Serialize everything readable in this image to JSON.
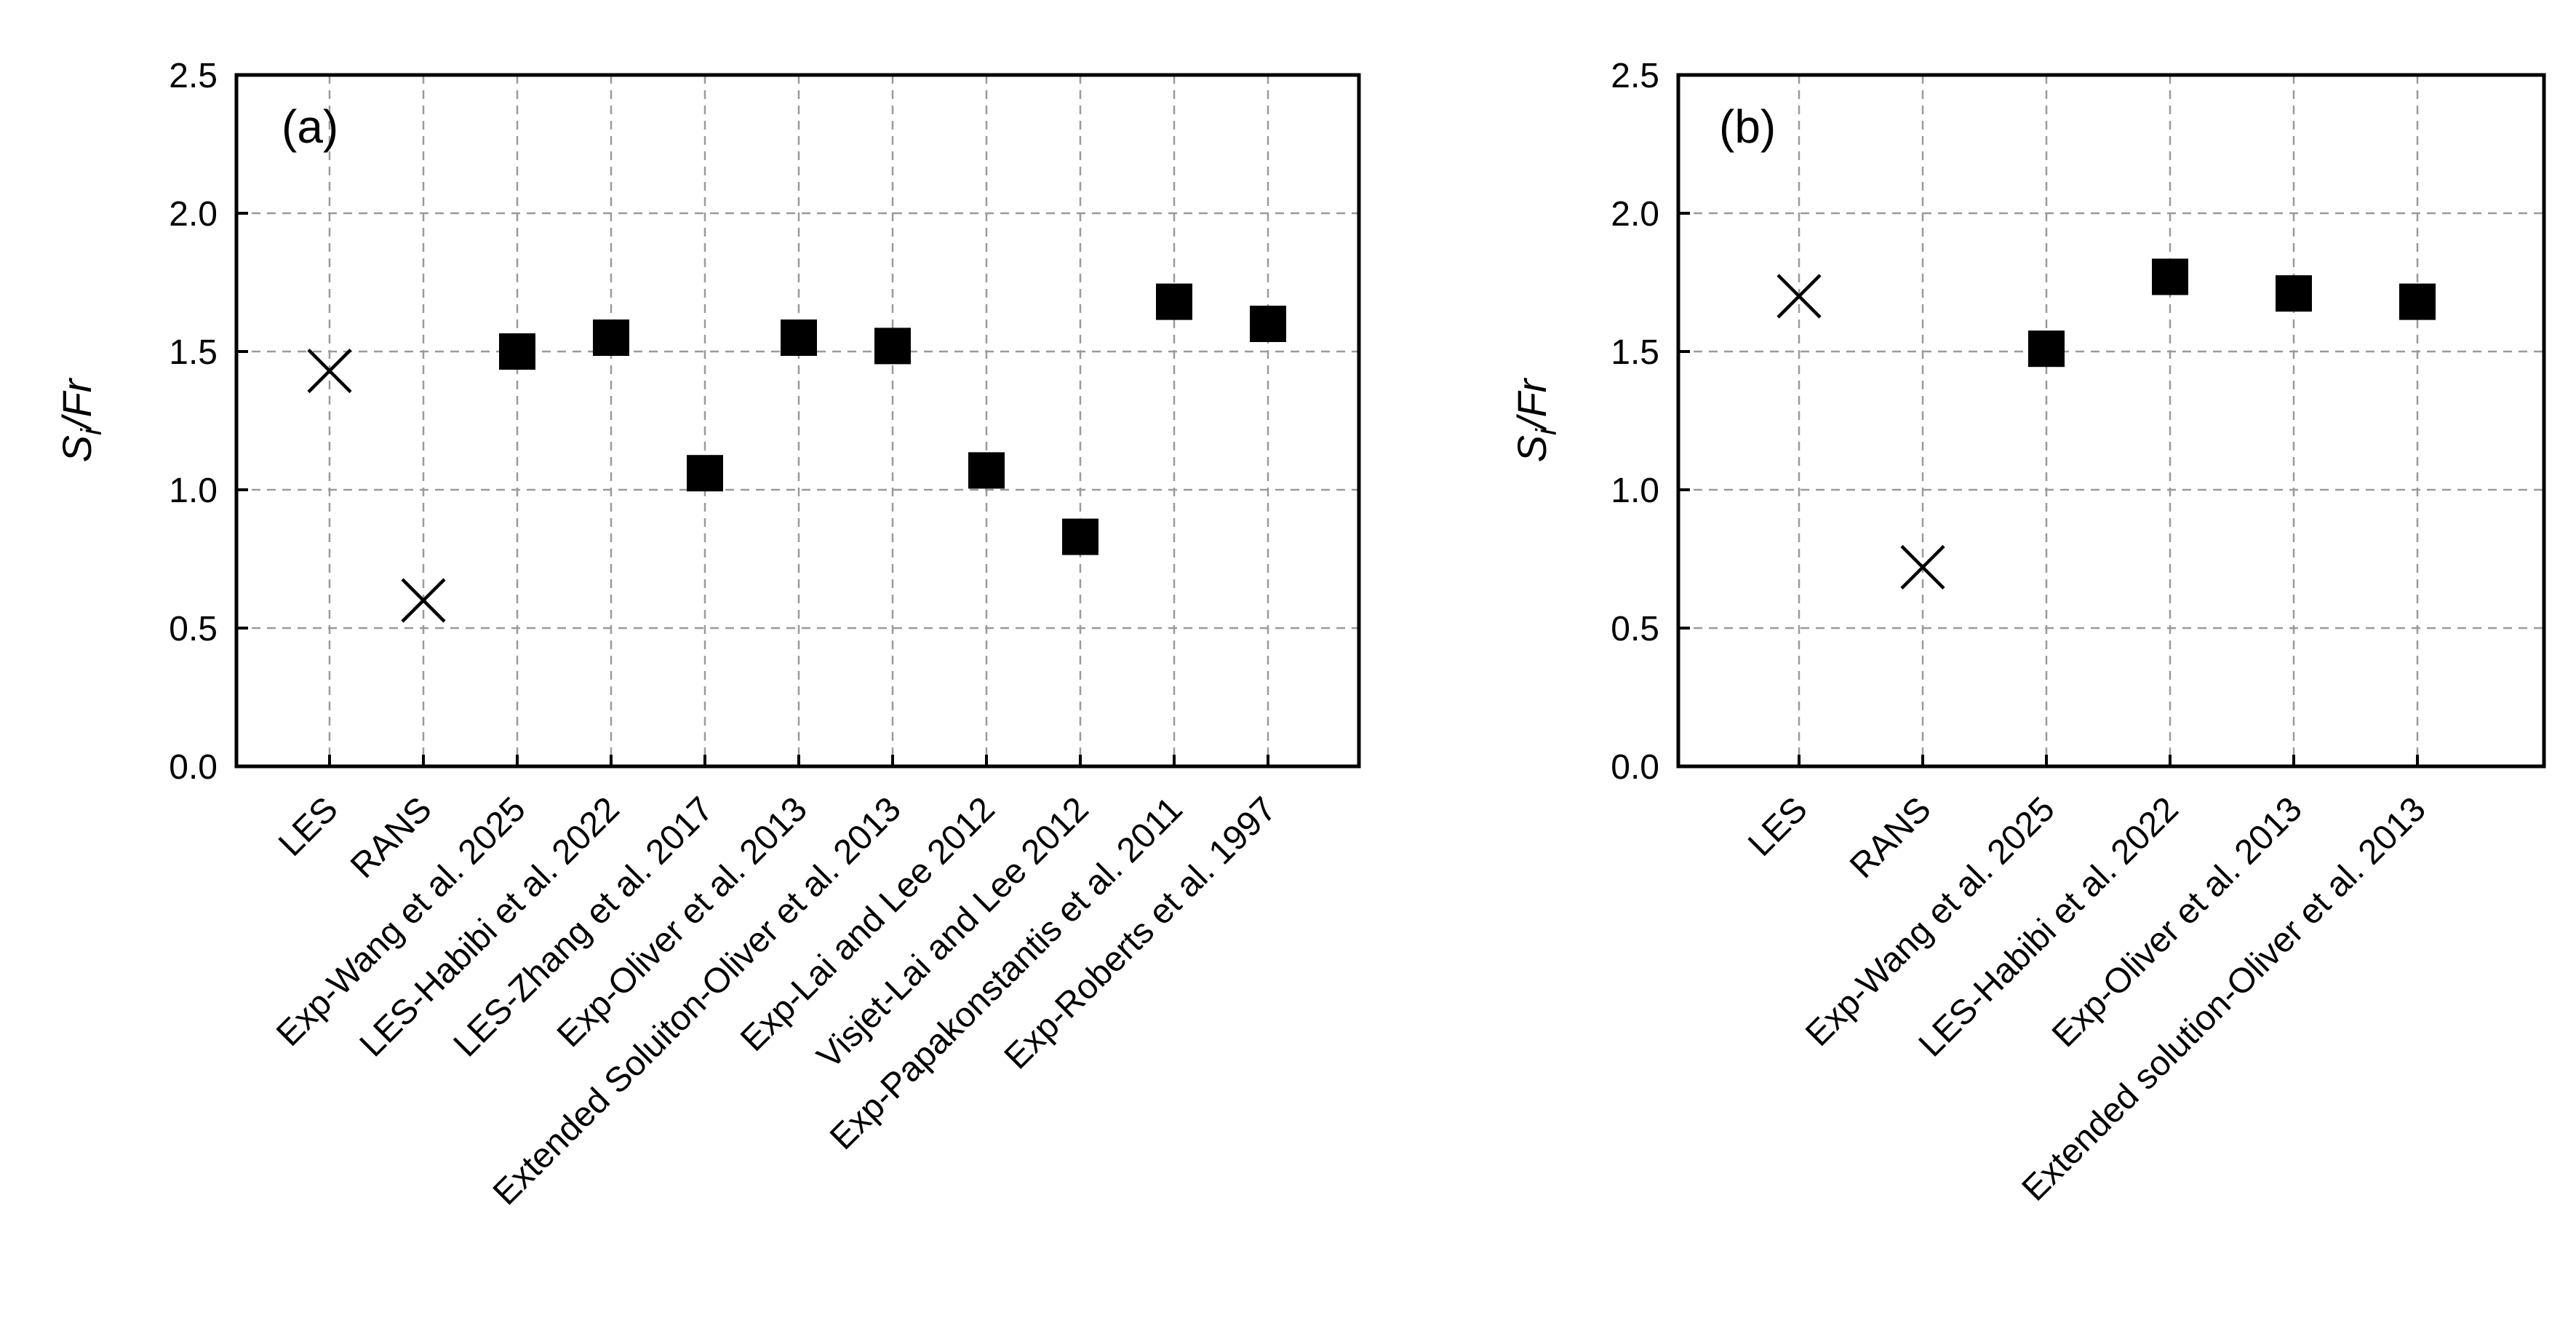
{
  "chart_data": [
    {
      "panel": "(a)",
      "type": "scatter",
      "ylabel_main": "S",
      "ylabel_sub": "i",
      "ylabel_rest": "/Fr",
      "ylim": [
        0.0,
        2.5
      ],
      "yticks": [
        "0.0",
        "0.5",
        "1.0",
        "1.5",
        "2.0",
        "2.5"
      ],
      "grid": true,
      "categories": [
        "LES",
        "RANS",
        "Exp-Wang  et al. 2025",
        "LES-Habibi et al. 2022",
        "LES-Zhang et al. 2017",
        "Exp-Oliver et al. 2013",
        "Extended Soluiton-Oliver et al. 2013",
        "Exp-Lai and Lee 2012",
        "Visjet-Lai and Lee 2012",
        "Exp-Papakonstantis et al.  2011",
        "Exp-Roberts et al. 1997"
      ],
      "values": [
        1.43,
        0.6,
        1.5,
        1.55,
        1.06,
        1.55,
        1.52,
        1.07,
        0.83,
        1.68,
        1.6
      ],
      "markers": [
        "cross",
        "cross",
        "square",
        "square",
        "square",
        "square",
        "square",
        "square",
        "square",
        "square",
        "square"
      ]
    },
    {
      "panel": "(b)",
      "type": "scatter",
      "ylabel_main": "S",
      "ylabel_sub": "i",
      "ylabel_rest": "/Fr",
      "ylim": [
        0.0,
        2.5
      ],
      "yticks": [
        "0.0",
        "0.5",
        "1.0",
        "1.5",
        "2.0",
        "2.5"
      ],
      "grid": true,
      "categories": [
        "LES",
        "RANS",
        "Exp-Wang  et al. 2025",
        "LES-Habibi et al. 2022",
        "Exp-Oliver et al. 2013",
        "Extended solution-Oliver et al. 2013"
      ],
      "values": [
        1.7,
        0.72,
        1.51,
        1.77,
        1.71,
        1.68
      ],
      "markers": [
        "cross",
        "cross",
        "square",
        "square",
        "square",
        "square"
      ]
    }
  ]
}
